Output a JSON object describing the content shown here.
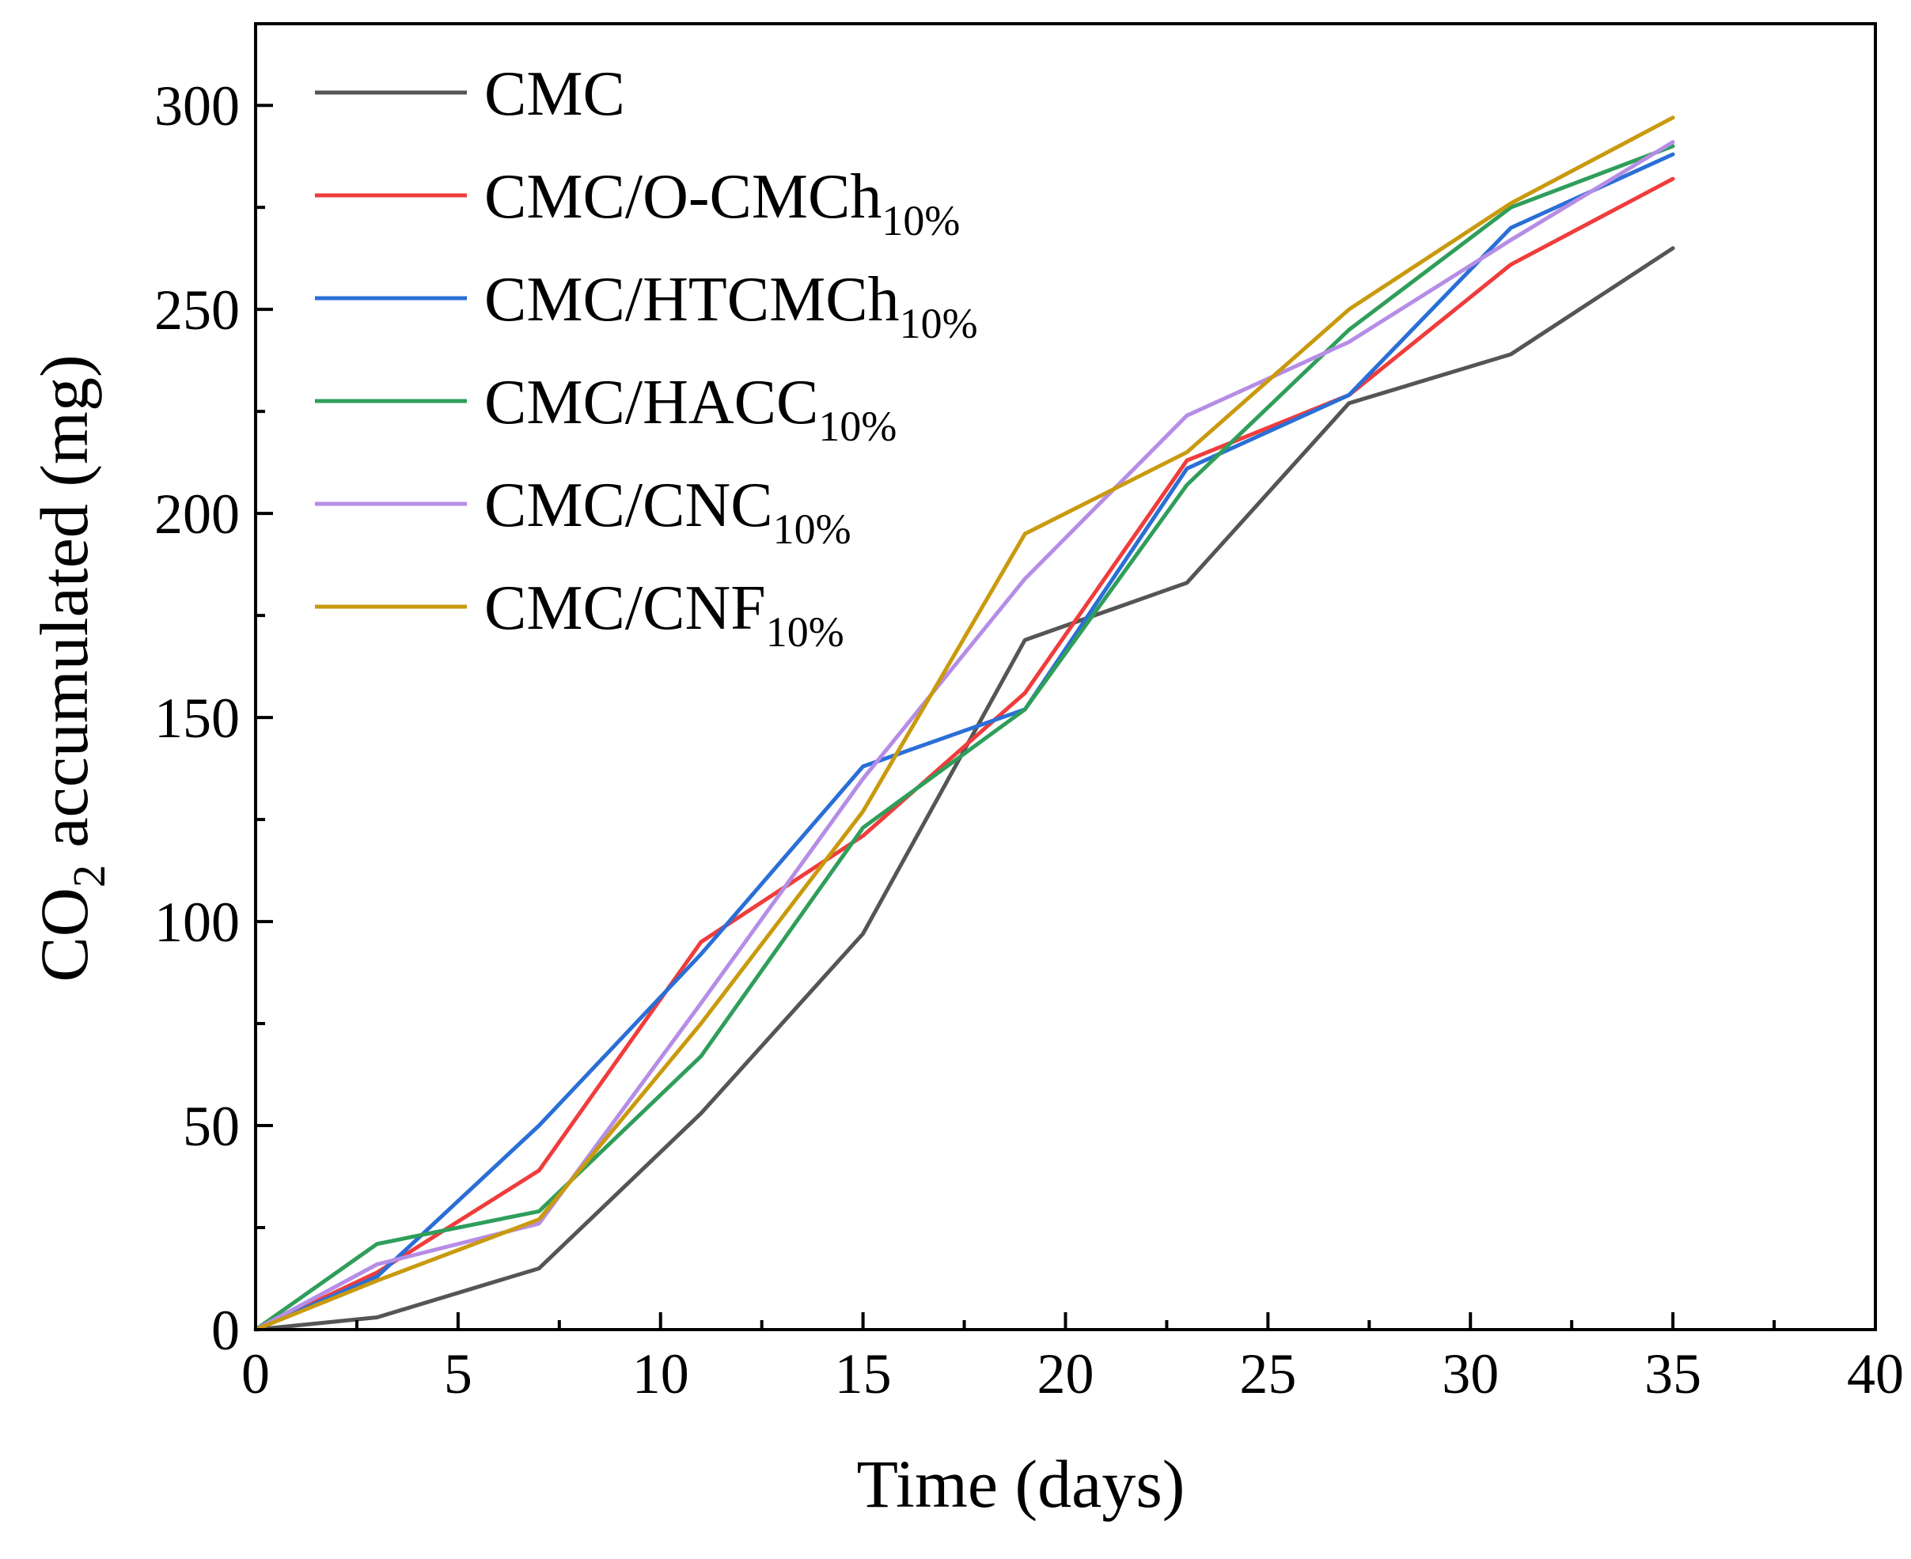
{
  "chart_data": {
    "type": "line",
    "title": "",
    "xlabel": "Time (days)",
    "ylabel": {
      "prefix": "CO",
      "subscript": "2",
      "suffix": " accumulated (mg)"
    },
    "xlim": [
      0,
      40
    ],
    "ylim": [
      0,
      320
    ],
    "xticks": [
      0,
      5,
      10,
      15,
      20,
      25,
      30,
      35,
      40
    ],
    "yticks": [
      0,
      50,
      100,
      150,
      200,
      250,
      300
    ],
    "grid": false,
    "legend_position": "top-left",
    "x": [
      0,
      3,
      7,
      11,
      15,
      19,
      23,
      27,
      31,
      35
    ],
    "series": [
      {
        "name": "CMC",
        "subscript": "",
        "color": "#555555",
        "values": [
          0,
          3,
          15,
          53,
          97,
          169,
          183,
          227,
          239,
          265
        ]
      },
      {
        "name": "CMC/O-CMCh",
        "subscript": "10%",
        "color": "#f03c3c",
        "values": [
          0,
          14,
          39,
          95,
          121,
          156,
          213,
          229,
          261,
          282
        ]
      },
      {
        "name": "CMC/HTCMCh",
        "subscript": "10%",
        "color": "#2a6fd6",
        "values": [
          0,
          13,
          50,
          92,
          138,
          152,
          211,
          229,
          270,
          288
        ]
      },
      {
        "name": "CMC/HACC",
        "subscript": "10%",
        "color": "#2f9e5a",
        "values": [
          0,
          21,
          29,
          67,
          123,
          152,
          207,
          245,
          275,
          290
        ]
      },
      {
        "name": "CMC/CNC",
        "subscript": "10%",
        "color": "#b68de6",
        "values": [
          0,
          16,
          26,
          80,
          135,
          184,
          224,
          242,
          267,
          291
        ]
      },
      {
        "name": "CMC/CNF",
        "subscript": "10%",
        "color": "#c99a0e",
        "values": [
          0,
          12,
          27,
          75,
          127,
          195,
          215,
          250,
          276,
          297
        ]
      }
    ]
  }
}
